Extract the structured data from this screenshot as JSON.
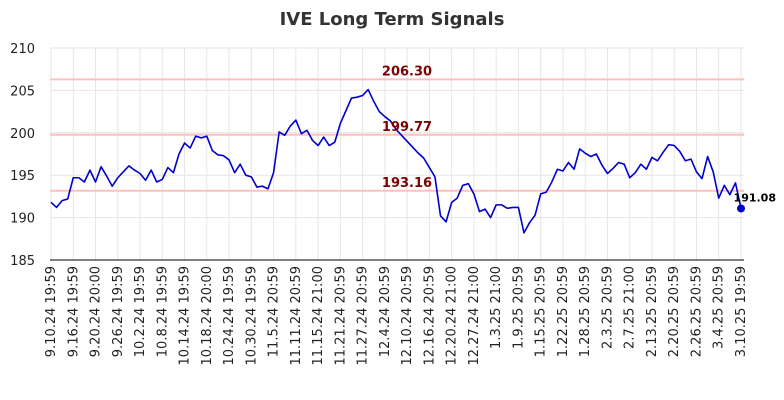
{
  "chart_data": {
    "type": "line",
    "title": "IVE Long Term Signals",
    "xlabel": "",
    "ylabel": "",
    "ylim": [
      185,
      210
    ],
    "y_ticks": [
      185,
      190,
      195,
      200,
      205,
      210
    ],
    "grid": true,
    "x_tick_labels": [
      "9.10.24 19:59",
      "9.16.24 19:59",
      "9.20.24 20:00",
      "9.26.24 19:59",
      "10.2.24 19:59",
      "10.8.24 19:59",
      "10.14.24 19:59",
      "10.18.24 20:00",
      "10.24.24 19:59",
      "10.30.24 19:59",
      "11.5.24 20:59",
      "11.11.24 20:59",
      "11.15.24 21:00",
      "11.21.24 20:59",
      "11.27.24 20:59",
      "12.4.24 20:59",
      "12.10.24 20:59",
      "12.16.24 20:59",
      "12.20.24 21:00",
      "12.27.24 21:00",
      "1.3.25 21:00",
      "1.9.25 20:59",
      "1.15.25 20:59",
      "1.22.25 20:59",
      "1.28.25 20:59",
      "2.3.25 20:59",
      "2.7.25 21:00",
      "2.13.25 20:59",
      "2.20.25 20:59",
      "2.26.25 20:59",
      "3.4.25 20:59",
      "3.10.25 19:59"
    ],
    "series": [
      {
        "color": "#0000cc",
        "values": [
          191.8,
          191.2,
          192.0,
          192.2,
          194.7,
          194.7,
          194.2,
          195.6,
          194.2,
          196.0,
          194.9,
          193.7,
          194.7,
          195.4,
          196.1,
          195.6,
          195.2,
          194.4,
          195.6,
          194.2,
          194.5,
          195.9,
          195.3,
          197.5,
          198.8,
          198.2,
          199.6,
          199.4,
          199.6,
          197.9,
          197.4,
          197.3,
          196.8,
          195.3,
          196.3,
          195.0,
          194.8,
          193.6,
          193.7,
          193.4,
          195.3,
          200.1,
          199.7,
          200.8,
          201.5,
          199.9,
          200.3,
          199.1,
          198.5,
          199.5,
          198.5,
          198.9,
          201.1,
          202.6,
          204.1,
          204.2,
          204.4,
          205.1,
          203.7,
          202.5,
          201.9,
          201.4,
          200.4,
          199.7,
          199.0,
          198.3,
          197.6,
          197.0,
          195.9,
          194.8,
          190.2,
          189.5,
          191.8,
          192.3,
          193.8,
          194.0,
          192.8,
          190.7,
          191.0,
          190.0,
          191.5,
          191.5,
          191.1,
          191.2,
          191.2,
          188.2,
          189.4,
          190.3,
          192.8,
          193.0,
          194.2,
          195.7,
          195.5,
          196.5,
          195.7,
          198.1,
          197.6,
          197.2,
          197.5,
          196.2,
          195.2,
          195.8,
          196.5,
          196.3,
          194.7,
          195.3,
          196.3,
          195.7,
          197.1,
          196.7,
          197.7,
          198.6,
          198.5,
          197.8,
          196.7,
          196.9,
          195.4,
          194.6,
          197.2,
          195.4,
          192.3,
          193.8,
          192.7,
          194.1,
          191.08
        ]
      }
    ],
    "levels": [
      {
        "value": 206.3,
        "label": "206.30"
      },
      {
        "value": 199.77,
        "label": "199.77"
      },
      {
        "value": 193.16,
        "label": "193.16"
      }
    ],
    "level_line_color": "#ffc0c0",
    "level_label_color": "#800000",
    "last_value_label": "191.08",
    "grid_color": "#e6e6e6",
    "axis_color": "#000000"
  }
}
